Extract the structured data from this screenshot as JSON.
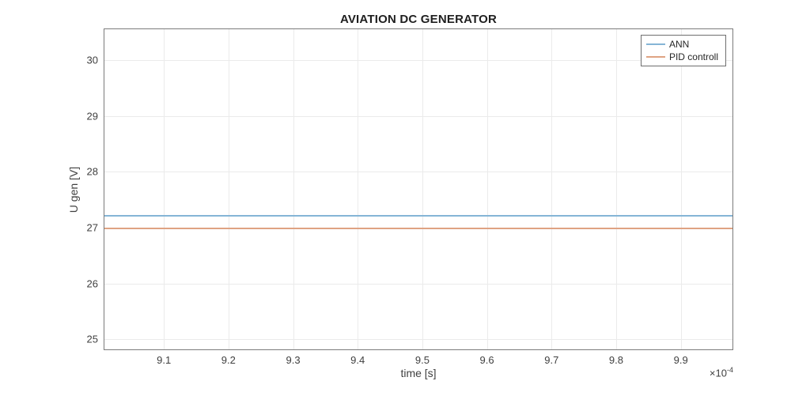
{
  "chart_data": {
    "type": "line",
    "title": "AVIATION DC GENERATOR",
    "xlabel": "time [s]",
    "ylabel": "U gen [V]",
    "x_offset_base": "×10",
    "x_offset_exp": "-4",
    "x_scale_note": "x axis values are in units of 1e-4 seconds",
    "xlim": [
      9.008,
      9.98
    ],
    "ylim": [
      24.82,
      30.55
    ],
    "xticks": [
      "9.1",
      "9.2",
      "9.3",
      "9.4",
      "9.5",
      "9.6",
      "9.7",
      "9.8",
      "9.9"
    ],
    "yticks": [
      "25",
      "26",
      "27",
      "28",
      "29",
      "30"
    ],
    "grid": true,
    "legend_position": "northeast",
    "series": [
      {
        "name": "ANN",
        "y_constant": 27.22,
        "color": "#85b5d6"
      },
      {
        "name": "PID controll",
        "y_constant": 27.0,
        "color": "#dfa383"
      }
    ],
    "colors": {
      "axis": "#7b7b7b",
      "grid": "#ebebeb",
      "tick": "#7b7b7b",
      "text": "#3f3f3f",
      "title": "#1f1f1f",
      "background": "#ffffff"
    }
  }
}
